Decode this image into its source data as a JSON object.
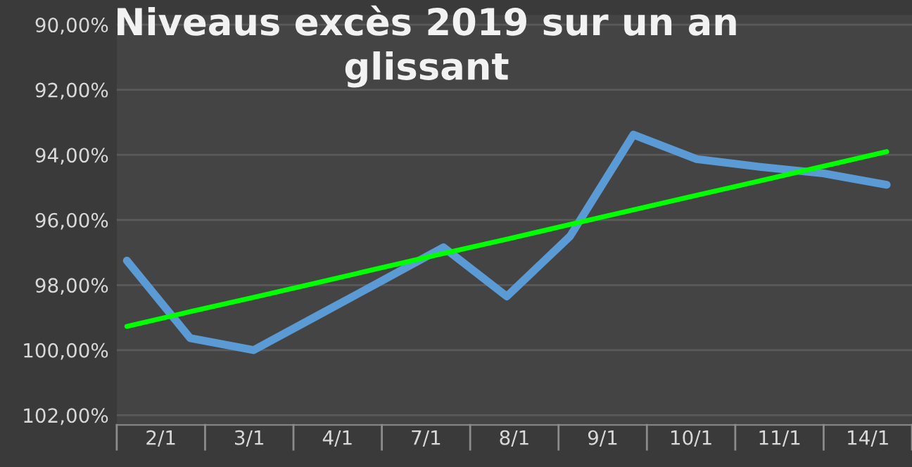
{
  "chart_data": {
    "type": "line",
    "title": "Niveaus excès 2019 sur un an glissant",
    "categories": [
      null,
      null,
      null,
      null,
      null,
      null,
      null,
      null,
      null,
      null,
      null,
      null,
      null
    ],
    "annotations": [
      "2/1",
      "3/1",
      "4/1",
      "7/1",
      "8/1",
      "9/1",
      "10/1",
      "11/1",
      "14/1"
    ],
    "ylim": [
      102.3,
      89.7
    ],
    "yticks": [
      {
        "value": 90,
        "label": "90,00%"
      },
      {
        "value": 92,
        "label": "92,00%"
      },
      {
        "value": 94,
        "label": "94,00%"
      },
      {
        "value": 96,
        "label": "96,00%"
      },
      {
        "value": 98,
        "label": "98,00%"
      },
      {
        "value": 100,
        "label": "100,00%"
      },
      {
        "value": 102,
        "label": "102,00%"
      }
    ],
    "grid": "y",
    "marker": "none",
    "line_style": "solid",
    "series": [
      {
        "color": "#5b9bd5",
        "values": [
          97.25,
          99.63,
          100.0,
          98.95,
          97.9,
          96.84,
          98.35,
          96.5,
          93.38,
          94.13,
          94.37,
          94.57,
          94.92
        ]
      },
      {
        "type": "line",
        "color": "#00ff00",
        "values": [
          99.27,
          98.82,
          98.38,
          97.93,
          97.48,
          97.03,
          96.59,
          96.14,
          95.69,
          95.24,
          94.8,
          94.35,
          93.9
        ]
      }
    ]
  }
}
